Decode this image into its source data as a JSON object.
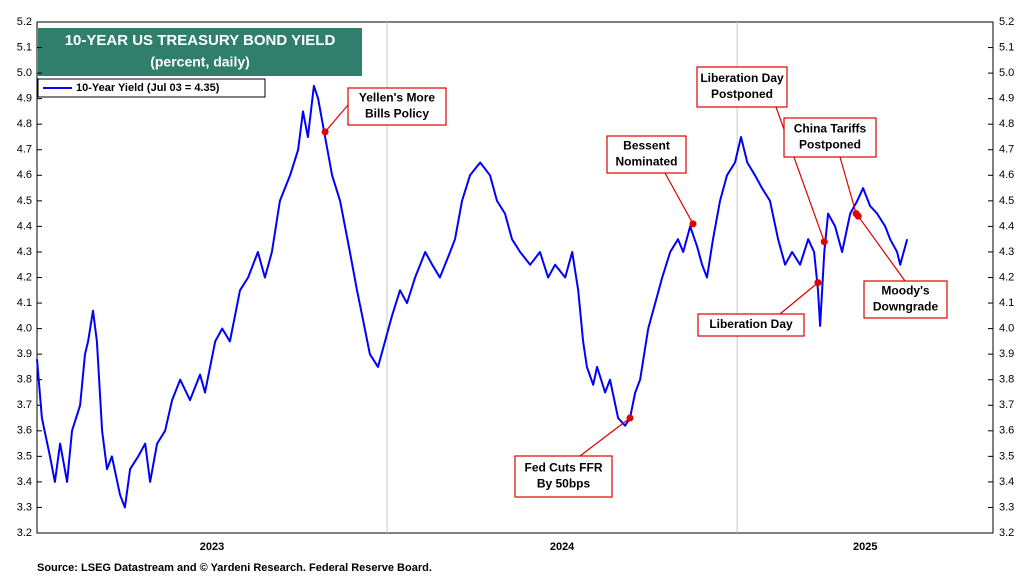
{
  "chart_data": {
    "type": "line",
    "title": "10-YEAR US TREASURY BOND YIELD",
    "subtitle": "(percent, daily)",
    "source": "Source: LSEG Datastream and © Yardeni Research. Federal Reserve Board.",
    "series": [
      {
        "name": "10-Year Yield (Jul 03 = 4.35)",
        "color": "#0000ff",
        "x": [
          2023.0,
          2023.014,
          2023.037,
          2023.051,
          2023.066,
          2023.086,
          2023.1,
          2023.123,
          2023.137,
          2023.146,
          2023.16,
          2023.171,
          2023.186,
          2023.2,
          2023.214,
          2023.237,
          2023.251,
          2023.266,
          2023.289,
          2023.309,
          2023.323,
          2023.343,
          2023.366,
          2023.386,
          2023.409,
          2023.437,
          2023.466,
          2023.48,
          2023.509,
          2023.529,
          2023.551,
          2023.58,
          2023.603,
          2023.631,
          2023.651,
          2023.671,
          2023.694,
          2023.723,
          2023.746,
          2023.76,
          2023.774,
          2023.791,
          2023.803,
          2023.823,
          2023.843,
          2023.866,
          2023.894,
          2023.914,
          2023.929,
          2023.951,
          2023.974,
          2023.994,
          2024.014,
          2024.037,
          2024.057,
          2024.08,
          2024.109,
          2024.129,
          2024.151,
          2024.18,
          2024.194,
          2024.214,
          2024.237,
          2024.266,
          2024.294,
          2024.314,
          2024.337,
          2024.357,
          2024.38,
          2024.409,
          2024.437,
          2024.46,
          2024.48,
          2024.509,
          2024.529,
          2024.546,
          2024.56,
          2024.571,
          2024.589,
          2024.6,
          2024.623,
          2024.637,
          2024.66,
          2024.68,
          2024.694,
          2024.709,
          2024.723,
          2024.746,
          2024.766,
          2024.786,
          2024.809,
          2024.831,
          2024.846,
          2024.866,
          2024.886,
          2024.9,
          2024.914,
          2024.931,
          2024.951,
          2024.971,
          2024.994,
          2025.011,
          2025.029,
          2025.051,
          2025.071,
          2025.094,
          2025.117,
          2025.137,
          2025.157,
          2025.18,
          2025.203,
          2025.22,
          2025.231,
          2025.237,
          2025.249,
          2025.26,
          2025.28,
          2025.3,
          2025.323,
          2025.343,
          2025.36,
          2025.38,
          2025.4,
          2025.423,
          2025.437,
          2025.457,
          2025.466,
          2025.486
        ],
        "values": [
          3.88,
          3.65,
          3.5,
          3.4,
          3.55,
          3.4,
          3.6,
          3.7,
          3.9,
          3.95,
          4.07,
          3.95,
          3.6,
          3.45,
          3.5,
          3.35,
          3.3,
          3.45,
          3.5,
          3.55,
          3.4,
          3.55,
          3.6,
          3.72,
          3.8,
          3.72,
          3.82,
          3.75,
          3.95,
          4.0,
          3.95,
          4.15,
          4.2,
          4.3,
          4.2,
          4.3,
          4.5,
          4.6,
          4.7,
          4.85,
          4.75,
          4.95,
          4.9,
          4.75,
          4.6,
          4.5,
          4.3,
          4.15,
          4.05,
          3.9,
          3.85,
          3.95,
          4.05,
          4.15,
          4.1,
          4.2,
          4.3,
          4.25,
          4.2,
          4.3,
          4.35,
          4.5,
          4.6,
          4.65,
          4.6,
          4.5,
          4.45,
          4.35,
          4.3,
          4.25,
          4.3,
          4.2,
          4.25,
          4.2,
          4.3,
          4.15,
          3.95,
          3.85,
          3.78,
          3.85,
          3.75,
          3.8,
          3.65,
          3.62,
          3.65,
          3.75,
          3.8,
          4.0,
          4.1,
          4.2,
          4.3,
          4.35,
          4.3,
          4.4,
          4.32,
          4.25,
          4.2,
          4.35,
          4.5,
          4.6,
          4.65,
          4.75,
          4.65,
          4.6,
          4.55,
          4.5,
          4.35,
          4.25,
          4.3,
          4.25,
          4.35,
          4.3,
          4.15,
          4.01,
          4.3,
          4.45,
          4.4,
          4.3,
          4.45,
          4.5,
          4.55,
          4.48,
          4.45,
          4.4,
          4.35,
          4.3,
          4.25,
          4.35
        ]
      }
    ],
    "xlim": [
      2023,
      2025.731
    ],
    "xticks": [
      {
        "value": 2023.5,
        "label": "2023"
      },
      {
        "value": 2024.5,
        "label": "2024"
      },
      {
        "value": 2025.366,
        "label": "2025"
      }
    ],
    "x_gridlines": [
      2024,
      2025
    ],
    "ylim": [
      3.2,
      5.2
    ],
    "yticks": [
      3.2,
      3.3,
      3.4,
      3.5,
      3.6,
      3.7,
      3.8,
      3.9,
      {
        "value": 4,
        "label": "4.0"
      },
      4.1,
      4.2,
      4.3,
      4.4,
      4.5,
      4.6,
      4.7,
      4.8,
      4.9,
      {
        "value": 5,
        "label": "5.0"
      },
      5.1,
      5.2
    ],
    "annotations": [
      {
        "lines": [
          "Yellen's More",
          "Bills Policy"
        ],
        "x": 2023.823,
        "y": 4.77
      },
      {
        "lines": [
          "Bessent",
          "Nominated"
        ],
        "x": 2024.874,
        "y": 4.41
      },
      {
        "lines": [
          "Fed Cuts FFR",
          "By 50bps"
        ],
        "x": 2024.694,
        "y": 3.65
      },
      {
        "lines": [
          "Liberation Day",
          "Postponed"
        ],
        "x": 2025.249,
        "y": 4.34
      },
      {
        "lines": [
          "Liberation Day"
        ],
        "x": 2025.231,
        "y": 4.18
      },
      {
        "lines": [
          "China Tariffs",
          "Postponed"
        ],
        "x": 2025.34,
        "y": 4.45
      },
      {
        "lines": [
          "Moody's",
          "Downgrade"
        ],
        "x": 2025.346,
        "y": 4.44
      }
    ]
  }
}
